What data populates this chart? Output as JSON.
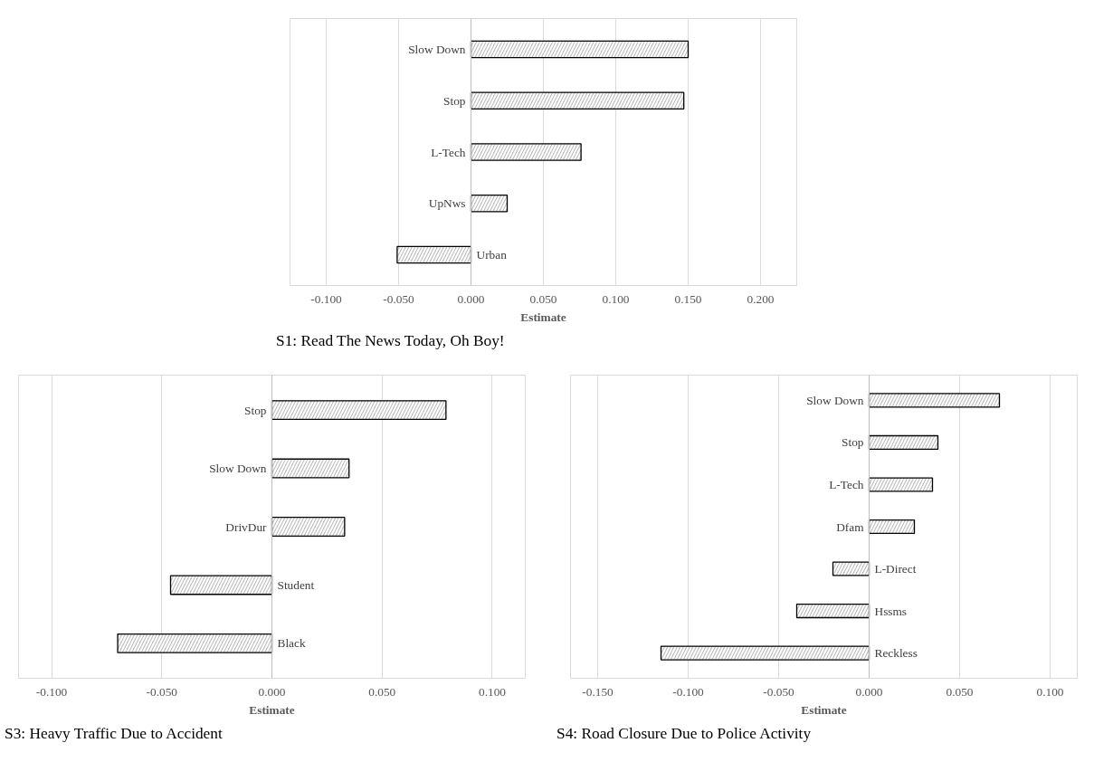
{
  "chart_data": [
    {
      "type": "bar",
      "orientation": "horizontal",
      "title": "S1: Read The News Today, Oh Boy!",
      "xlabel": "Estimate",
      "categories": [
        "Slow Down",
        "Stop",
        "L-Tech",
        "UpNws",
        "Urban"
      ],
      "values": [
        0.15,
        0.147,
        0.076,
        0.025,
        -0.051
      ],
      "color": "#bfbfbf",
      "xlim": [
        -0.125,
        0.225
      ],
      "xticks": [
        {
          "value": -0.1,
          "label": "-0.100"
        },
        {
          "value": -0.05,
          "label": "-0.050"
        },
        {
          "value": 0,
          "label": "0.000"
        },
        {
          "value": 0.05,
          "label": "0.050"
        },
        {
          "value": 0.1,
          "label": "0.100"
        },
        {
          "value": 0.15,
          "label": "0.150"
        },
        {
          "value": 0.2,
          "label": "0.200"
        }
      ],
      "grid": "x",
      "tick_labels": "x"
    },
    {
      "type": "bar",
      "orientation": "horizontal",
      "title": "S3: Heavy Traffic  Due to Accident",
      "xlabel": "Estimate",
      "categories": [
        "Stop",
        "Slow Down",
        "DrivDur",
        "Student",
        "Black"
      ],
      "values": [
        0.079,
        0.035,
        0.033,
        -0.046,
        -0.07
      ],
      "color": "#bfbfbf",
      "xlim": [
        -0.115,
        0.115
      ],
      "xticks": [
        {
          "value": -0.1,
          "label": "-0.100"
        },
        {
          "value": -0.05,
          "label": "-0.050"
        },
        {
          "value": 0,
          "label": "0.000"
        },
        {
          "value": 0.05,
          "label": "0.050"
        },
        {
          "value": 0.1,
          "label": "0.100"
        }
      ],
      "grid": "x",
      "tick_labels": "x"
    },
    {
      "type": "bar",
      "orientation": "horizontal",
      "title": "S4: Road Closure Due to Police Activity",
      "xlabel": "Estimate",
      "categories": [
        "Slow Down",
        "Stop",
        "L-Tech",
        "Dfam",
        "L-Direct",
        "Hssms",
        "Reckless"
      ],
      "values": [
        0.072,
        0.038,
        0.035,
        0.025,
        -0.02,
        -0.04,
        -0.115
      ],
      "color": "#bfbfbf",
      "xlim": [
        -0.165,
        0.115
      ],
      "xticks": [
        {
          "value": -0.15,
          "label": "-0.150"
        },
        {
          "value": -0.1,
          "label": "-0.100"
        },
        {
          "value": -0.05,
          "label": "-0.050"
        },
        {
          "value": 0,
          "label": "0.000"
        },
        {
          "value": 0.05,
          "label": "0.050"
        },
        {
          "value": 0.1,
          "label": "0.100"
        }
      ],
      "grid": "x",
      "tick_labels": "x"
    }
  ]
}
